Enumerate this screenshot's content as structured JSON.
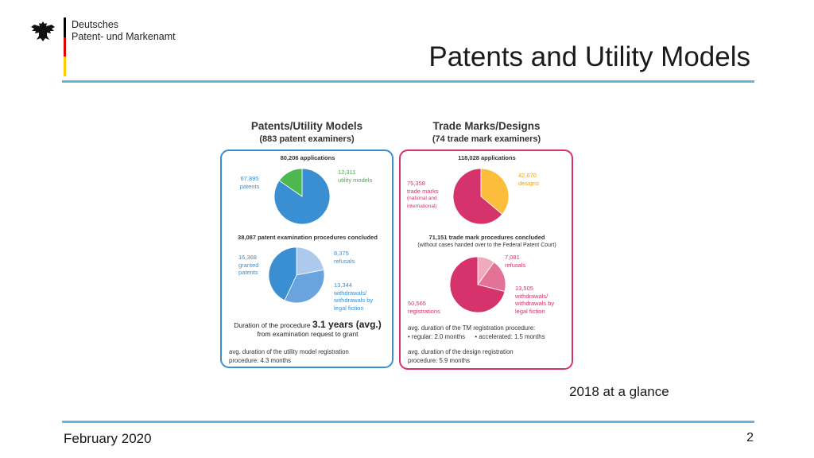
{
  "header": {
    "org_line1": "Deutsches",
    "org_line2": "Patent- und Markenamt",
    "title": "Patents and Utility Models"
  },
  "subtitle": "2018 at a glance",
  "footer": {
    "date": "February 2020",
    "page": "2"
  },
  "colors": {
    "rule": "#64b5d9",
    "patent_blue": "#3a8fd3",
    "patent_light": "#adc9ec",
    "patent_mid": "#6aa4de",
    "utility_green": "#4cb84e",
    "tm_pink": "#d6336c",
    "tm_light": "#f0a9bd",
    "tm_mid": "#e47196",
    "design_orange": "#fbbd3b"
  },
  "panels": {
    "left": {
      "title": "Patents/Utility Models",
      "subtitle": "(883 patent examiners)",
      "pie1": {
        "total": "80,206 applications",
        "slices": [
          {
            "value": "67,895",
            "label1": "patents",
            "label2": ""
          },
          {
            "value": "12,311",
            "label1": "utility models",
            "label2": ""
          }
        ]
      },
      "pie2": {
        "total": "38,087 patent examination procedures concluded",
        "slices": [
          {
            "value": "8,375",
            "label1": "refusals",
            "label2": "",
            "label3": ""
          },
          {
            "value": "13,344",
            "label1": "withdrawals/",
            "label2": "withdrawals by",
            "label3": "legal fiction"
          },
          {
            "value": "16,368",
            "label1": "granted",
            "label2": "patents",
            "label3": ""
          }
        ]
      },
      "duration_prefix": "Duration of the procedure",
      "duration_value": "3.1 years (avg.)",
      "duration_suffix": "from examination request to grant",
      "note_line1": "avg. duration of the utility model registration",
      "note_line2": "procedure: 4.3 months"
    },
    "right": {
      "title": "Trade Marks/Designs",
      "subtitle": "(74 trade mark examiners)",
      "pie1": {
        "total": "118,028 applications",
        "slices": [
          {
            "value": "42,670",
            "label1": "designs",
            "label2": "",
            "label3": ""
          },
          {
            "value": "75,358",
            "label1": "trade marks",
            "label2": "(national and",
            "label3": "international)"
          }
        ]
      },
      "pie2": {
        "total": "71,151 trade mark procedures concluded",
        "total_note": "(without cases handed over to the Federal Patent Court)",
        "slices": [
          {
            "value": "7,081",
            "label1": "refusals",
            "label2": "",
            "label3": ""
          },
          {
            "value": "13,505",
            "label1": "withdrawals/",
            "label2": "withdrawals by",
            "label3": "legal fiction"
          },
          {
            "value": "50,565",
            "label1": "registrations",
            "label2": "",
            "label3": ""
          }
        ]
      },
      "note1_line1": "avg. duration of the TM registration procedure:",
      "note1_line2a": "• regular: 2.0 months",
      "note1_line2b": "• accelerated: 1.5 months",
      "note2_line1": "avg. duration of the design registration",
      "note2_line2": "procedure: 5.9 months"
    }
  },
  "chart_data": [
    {
      "type": "pie",
      "title": "80,206 applications",
      "categories": [
        "patents",
        "utility models"
      ],
      "values": [
        67895,
        12311
      ]
    },
    {
      "type": "pie",
      "title": "38,087 patent examination procedures concluded",
      "categories": [
        "refusals",
        "withdrawals/withdrawals by legal fiction",
        "granted patents"
      ],
      "values": [
        8375,
        13344,
        16368
      ]
    },
    {
      "type": "pie",
      "title": "118,028 applications",
      "categories": [
        "designs",
        "trade marks (national and international)"
      ],
      "values": [
        42670,
        75358
      ]
    },
    {
      "type": "pie",
      "title": "71,151 trade mark procedures concluded",
      "categories": [
        "refusals",
        "withdrawals/withdrawals by legal fiction",
        "registrations"
      ],
      "values": [
        7081,
        13505,
        50565
      ]
    }
  ]
}
